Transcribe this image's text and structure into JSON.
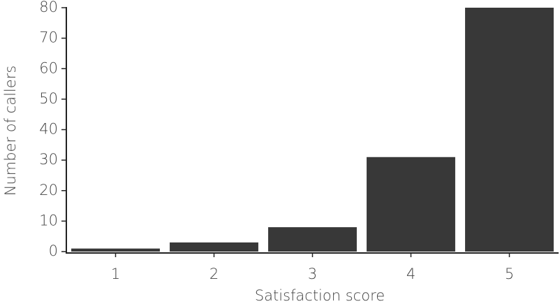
{
  "chart_data": {
    "type": "bar",
    "x_label": "Satisfaction score",
    "y_label": "Number of callers",
    "categories": [
      "1",
      "2",
      "3",
      "4",
      "5"
    ],
    "values": [
      1,
      3,
      8,
      31,
      80
    ],
    "color": "#383838",
    "ylim": [
      0,
      80
    ],
    "yticks": [
      0,
      10,
      20,
      30,
      40,
      50,
      60,
      70,
      80
    ],
    "grid": false
  }
}
